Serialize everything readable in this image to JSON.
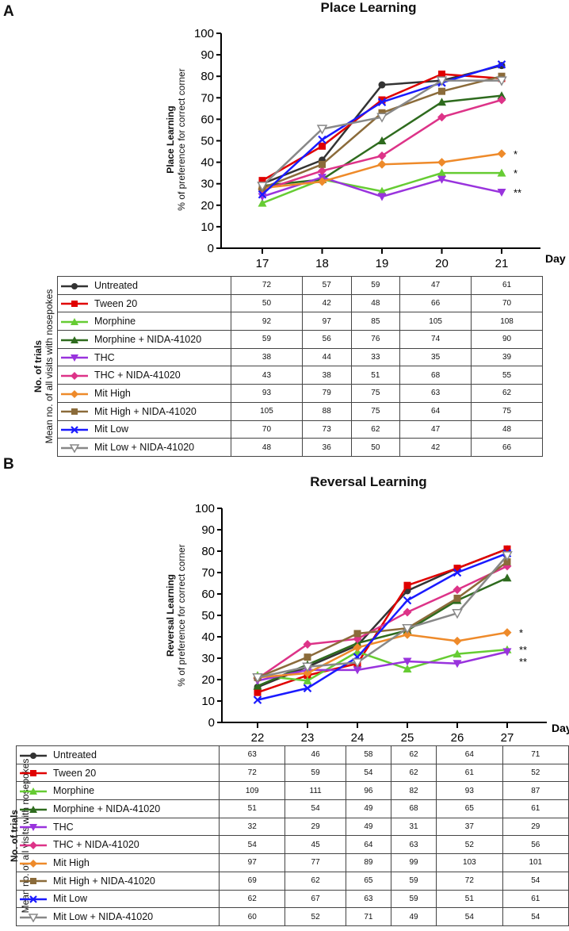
{
  "chart_data": [
    {
      "panel": "A",
      "type": "line",
      "title": "Place Learning",
      "ylabel_bold": "Place Learning",
      "ylabel": "% of preference for correct corner",
      "xlabel": "Day",
      "x": [
        17,
        18,
        19,
        20,
        21
      ],
      "ylim": [
        0,
        100
      ],
      "yticks": [
        0,
        10,
        20,
        30,
        40,
        50,
        60,
        70,
        80,
        90,
        100
      ],
      "grid": false,
      "significance": [
        {
          "series": "Mit High",
          "label": "*"
        },
        {
          "series": "Morphine",
          "label": "*"
        },
        {
          "series": "THC",
          "label": "**"
        }
      ],
      "series": [
        {
          "name": "Untreated",
          "color": "#333333",
          "marker": "circle",
          "values": [
            30,
            41,
            76,
            78,
            85
          ]
        },
        {
          "name": "Tween 20",
          "color": "#e00000",
          "marker": "square",
          "values": [
            31.5,
            47.5,
            69,
            81,
            79
          ]
        },
        {
          "name": "Morphine",
          "color": "#66cc33",
          "marker": "triangle-up",
          "values": [
            21,
            32,
            26.5,
            35,
            35
          ]
        },
        {
          "name": "Morphine + NIDA-41020",
          "color": "#2e6b1e",
          "marker": "triangle-up",
          "values": [
            29,
            32,
            50,
            68,
            71
          ]
        },
        {
          "name": "THC",
          "color": "#9933dd",
          "marker": "triangle-down",
          "values": [
            24,
            33,
            24,
            32,
            26
          ]
        },
        {
          "name": "THC + NIDA-41020",
          "color": "#dd3388",
          "marker": "diamond",
          "values": [
            27,
            36,
            43,
            61,
            69
          ]
        },
        {
          "name": "Mit High",
          "color": "#ee8a2a",
          "marker": "diamond",
          "values": [
            28,
            31,
            39,
            40,
            44
          ]
        },
        {
          "name": "Mit High + NIDA-41020",
          "color": "#8b6b3a",
          "marker": "square",
          "values": [
            28,
            39,
            63,
            73,
            80
          ]
        },
        {
          "name": "Mit Low",
          "color": "#1a1aff",
          "marker": "x",
          "values": [
            25,
            50.5,
            68,
            77,
            85.5
          ]
        },
        {
          "name": "Mit Low + NIDA-41020",
          "color": "#888888",
          "marker": "triangle-down-open",
          "values": [
            29,
            55.5,
            61,
            78,
            78
          ]
        }
      ],
      "table": {
        "ylabel_bold": "No. of trials",
        "ylabel": "Mean no. of all visits with nosepokes",
        "rows": [
          [
            72,
            57,
            59,
            47,
            61
          ],
          [
            50,
            42,
            48,
            66,
            70
          ],
          [
            92,
            97,
            85,
            105,
            108
          ],
          [
            59,
            56,
            76,
            74,
            90
          ],
          [
            38,
            44,
            33,
            35,
            39
          ],
          [
            43,
            38,
            51,
            68,
            55
          ],
          [
            93,
            79,
            75,
            63,
            62
          ],
          [
            105,
            88,
            75,
            64,
            75
          ],
          [
            70,
            73,
            62,
            47,
            48
          ],
          [
            48,
            36,
            50,
            42,
            66
          ]
        ]
      }
    },
    {
      "panel": "B",
      "type": "line",
      "title": "Reversal Learning",
      "ylabel_bold": "Reversal Learning",
      "ylabel": "% of preference for correct corner",
      "xlabel": "Day",
      "x": [
        22,
        23,
        24,
        25,
        26,
        27
      ],
      "ylim": [
        0,
        100
      ],
      "yticks": [
        0,
        10,
        20,
        30,
        40,
        50,
        60,
        70,
        80,
        90,
        100
      ],
      "grid": false,
      "significance": [
        {
          "series": "Mit High",
          "label": "*"
        },
        {
          "series": "Morphine",
          "label": "**"
        },
        {
          "series": "THC",
          "label": "**"
        }
      ],
      "series": [
        {
          "name": "Untreated",
          "color": "#333333",
          "marker": "circle",
          "values": [
            16.5,
            26,
            36,
            61.5,
            72,
            81
          ]
        },
        {
          "name": "Tween 20",
          "color": "#e00000",
          "marker": "square",
          "values": [
            14,
            22,
            27.5,
            64,
            72,
            81
          ]
        },
        {
          "name": "Morphine",
          "color": "#66cc33",
          "marker": "triangle-up",
          "values": [
            22,
            19.5,
            33,
            25,
            32,
            34
          ]
        },
        {
          "name": "Morphine + NIDA-41020",
          "color": "#2e6b1e",
          "marker": "triangle-up",
          "values": [
            17,
            27,
            37,
            43,
            57,
            67.5
          ]
        },
        {
          "name": "THC",
          "color": "#9933dd",
          "marker": "triangle-down",
          "values": [
            19.5,
            24.5,
            24.5,
            28.5,
            27.5,
            33
          ]
        },
        {
          "name": "THC + NIDA-41020",
          "color": "#dd3388",
          "marker": "diamond",
          "values": [
            20.5,
            36.5,
            39,
            51.5,
            62,
            73
          ]
        },
        {
          "name": "Mit High",
          "color": "#ee8a2a",
          "marker": "diamond",
          "values": [
            21,
            23,
            35,
            41,
            38,
            42
          ]
        },
        {
          "name": "Mit High + NIDA-41020",
          "color": "#8b6b3a",
          "marker": "square",
          "values": [
            21,
            30.5,
            41.5,
            44,
            58,
            75
          ]
        },
        {
          "name": "Mit Low",
          "color": "#1a1aff",
          "marker": "x",
          "values": [
            10.5,
            16,
            30.5,
            57,
            70,
            79
          ]
        },
        {
          "name": "Mit Low + NIDA-41020",
          "color": "#888888",
          "marker": "triangle-down-open",
          "values": [
            21,
            26,
            28,
            44,
            51,
            78
          ]
        }
      ],
      "table": {
        "ylabel_bold": "No. of trials",
        "ylabel": "Mean no. of all visits with nosepokes",
        "rows": [
          [
            63,
            46,
            58,
            62,
            64,
            71
          ],
          [
            72,
            59,
            54,
            62,
            61,
            52
          ],
          [
            109,
            111,
            96,
            82,
            93,
            87
          ],
          [
            51,
            54,
            49,
            68,
            65,
            61
          ],
          [
            32,
            29,
            49,
            31,
            37,
            29
          ],
          [
            54,
            45,
            64,
            63,
            52,
            56
          ],
          [
            97,
            77,
            89,
            99,
            103,
            101
          ],
          [
            69,
            62,
            65,
            59,
            72,
            54
          ],
          [
            62,
            67,
            63,
            59,
            51,
            61
          ],
          [
            60,
            52,
            71,
            49,
            54,
            54
          ]
        ]
      }
    }
  ]
}
